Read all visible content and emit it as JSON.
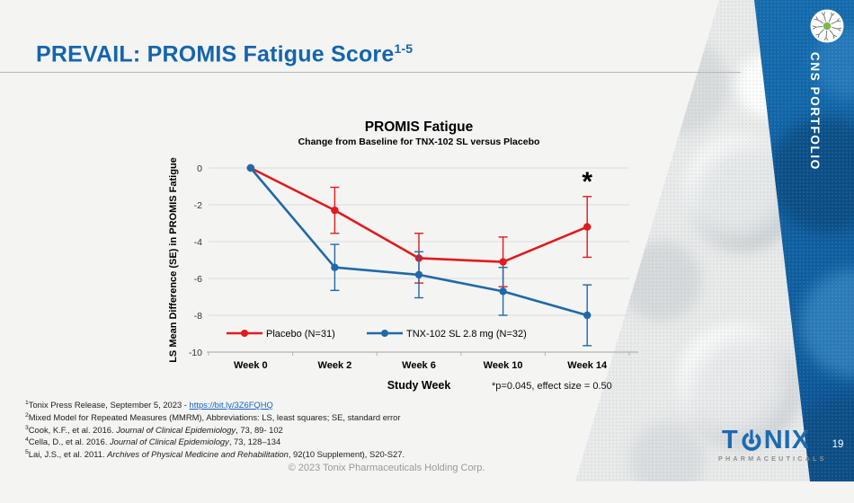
{
  "header": {
    "title": "PREVAIL: PROMIS Fatigue Score",
    "title_superscript": "1-5",
    "title_color": "#1565ad"
  },
  "band": {
    "label": "CNS PORTFOLIO",
    "page_number": "19",
    "icon": "neuron-icon",
    "band_color": "#1268aa",
    "neuron_dot_color": "#7ab648"
  },
  "chart_data": {
    "type": "line",
    "title": "PROMIS Fatigue",
    "subtitle": "Change from Baseline for TNX-102 SL versus Placebo",
    "xlabel": "Study Week",
    "ylabel": "LS Mean Difference (SE) in PROMIS Fatigue",
    "categories": [
      "Week 0",
      "Week 2",
      "Week 6",
      "Week 10",
      "Week 14"
    ],
    "x_weeks": [
      0,
      2,
      6,
      10,
      14
    ],
    "ylim": [
      -10,
      0
    ],
    "yticks": [
      0,
      -2,
      -4,
      -6,
      -8,
      -10
    ],
    "grid": true,
    "legend_position": "bottom-left-inside",
    "series": [
      {
        "name": "Placebo (N=31)",
        "color": "#e01b1e",
        "values": [
          0,
          -2.3,
          -4.9,
          -5.1,
          -3.2
        ],
        "se": [
          0,
          1.25,
          1.35,
          1.35,
          1.65
        ]
      },
      {
        "name": "TNX-102 SL 2.8 mg (N=32)",
        "color": "#2069a8",
        "values": [
          0,
          -5.4,
          -5.8,
          -6.7,
          -8.0
        ],
        "se": [
          0,
          1.25,
          1.25,
          1.3,
          1.65
        ]
      }
    ],
    "significance": {
      "marker": "*",
      "series": "Placebo (N=31)",
      "category": "Week 14"
    },
    "annotation": "*p=0.045, effect size = 0.50"
  },
  "footnotes": [
    {
      "sup": "1",
      "pre": "Tonix Press Release, September 5, 2023 - ",
      "link": "https://bit.ly/3Z6FQHQ"
    },
    {
      "sup": "2",
      "pre": "Mixed Model for Repeated Measures (MMRM), Abbreviations: LS, least squares; SE, standard error"
    },
    {
      "sup": "3",
      "pre": "Cook, K.F., et al. 2016. ",
      "italic": "Journal of Clinical Epidemiology",
      "post": ", 73, 89- 102"
    },
    {
      "sup": "4",
      "pre": "Cella, D., et al. 2016. ",
      "italic": "Journal of Clinical Epidemiology",
      "post": ", 73, 128–134"
    },
    {
      "sup": "5",
      "pre": "Lai, J.S., et al. 2011. ",
      "italic": "Archives of Physical Medicine and Rehabilitation",
      "post": ", 92(10 Supplement), S20-S27."
    }
  ],
  "footer": {
    "copyright": "© 2023 Tonix Pharmaceuticals Holding Corp."
  },
  "logo": {
    "prefix": "T",
    "suffix": "NIX",
    "subtitle": "PHARMACEUTICALS"
  }
}
